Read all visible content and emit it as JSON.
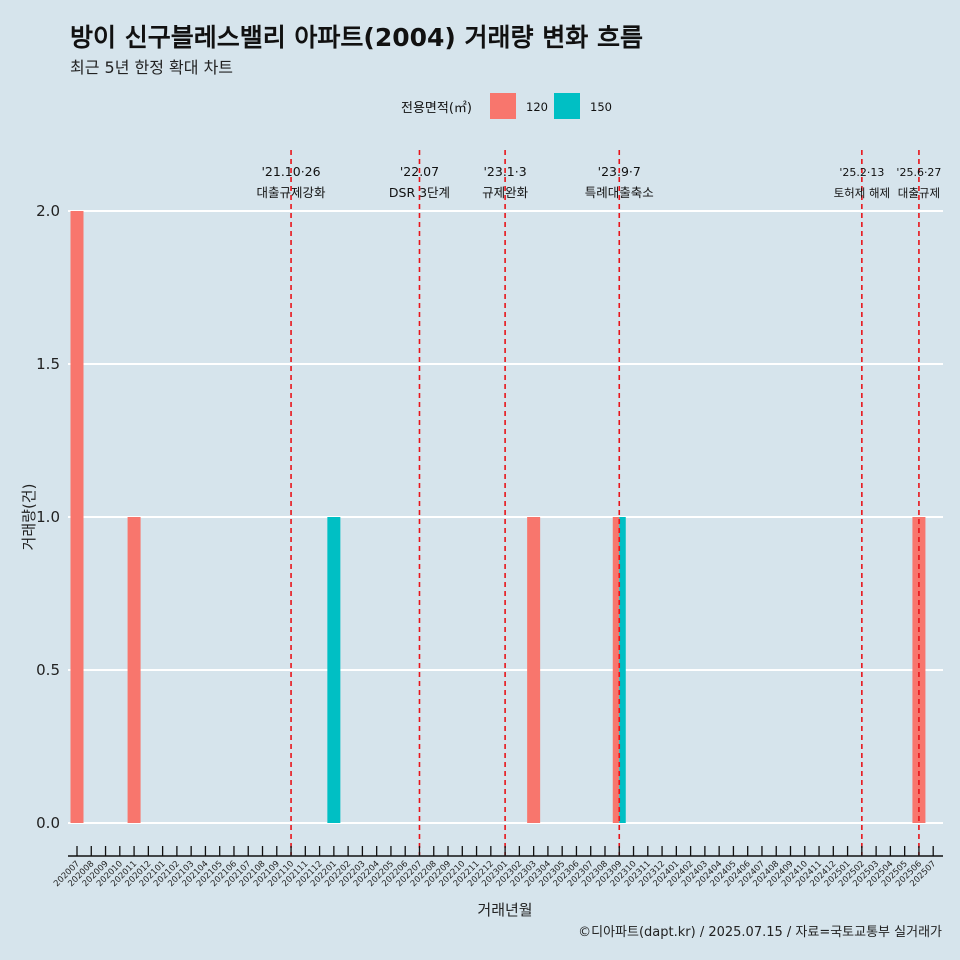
{
  "title": "방이 신구블레스밸리 아파트(2004) 거래량 변화 흐름",
  "subtitle": "최근 5년 한정 확대 차트",
  "caption": "©디아파트(dapt.kr) / 2025.07.15 / 자료=국토교통부 실거래가",
  "chart_data": {
    "type": "bar",
    "xlabel": "거래년월",
    "ylabel": "거래량(건)",
    "ylim": [
      0,
      2
    ],
    "yticks": [
      "0.0",
      "0.5",
      "1.0",
      "1.5",
      "2.0"
    ],
    "legend_title": "전용면적(㎡)",
    "legend_position": "top",
    "grid": true,
    "categories": [
      "202007",
      "202008",
      "202009",
      "202010",
      "202011",
      "202012",
      "202101",
      "202102",
      "202103",
      "202104",
      "202105",
      "202106",
      "202107",
      "202108",
      "202109",
      "202110",
      "202111",
      "202112",
      "202201",
      "202202",
      "202203",
      "202204",
      "202205",
      "202206",
      "202207",
      "202208",
      "202209",
      "202210",
      "202211",
      "202212",
      "202301",
      "202302",
      "202303",
      "202304",
      "202305",
      "202306",
      "202307",
      "202308",
      "202309",
      "202310",
      "202311",
      "202312",
      "202401",
      "202402",
      "202403",
      "202404",
      "202405",
      "202406",
      "202407",
      "202408",
      "202409",
      "202410",
      "202411",
      "202412",
      "202501",
      "202502",
      "202503",
      "202504",
      "202505",
      "202506",
      "202507"
    ],
    "series": [
      {
        "name": "120",
        "color": "#f8766d",
        "points": [
          {
            "x": "202007",
            "y": 2
          },
          {
            "x": "202011",
            "y": 1
          },
          {
            "x": "202303",
            "y": 1
          },
          {
            "x": "202309",
            "y": 1
          },
          {
            "x": "202506",
            "y": 1
          }
        ]
      },
      {
        "name": "150",
        "color": "#00bfc4",
        "points": [
          {
            "x": "202201",
            "y": 1
          },
          {
            "x": "202309",
            "y": 1
          }
        ]
      }
    ],
    "annotations": [
      {
        "x": "202110",
        "date": "'21.10·26",
        "label": "대출규제강화"
      },
      {
        "x": "202207",
        "date": "'22.07",
        "label": "DSR 3단계"
      },
      {
        "x": "202301",
        "date": "'23.1·3",
        "label": "규제완화"
      },
      {
        "x": "202309",
        "date": "'23.9·7",
        "label": "특례대출축소"
      },
      {
        "x": "202502",
        "date": "'25.2·13",
        "label": "토허제 해제"
      },
      {
        "x": "202506",
        "date": "'25.6·27",
        "label": "대출규제"
      }
    ]
  }
}
